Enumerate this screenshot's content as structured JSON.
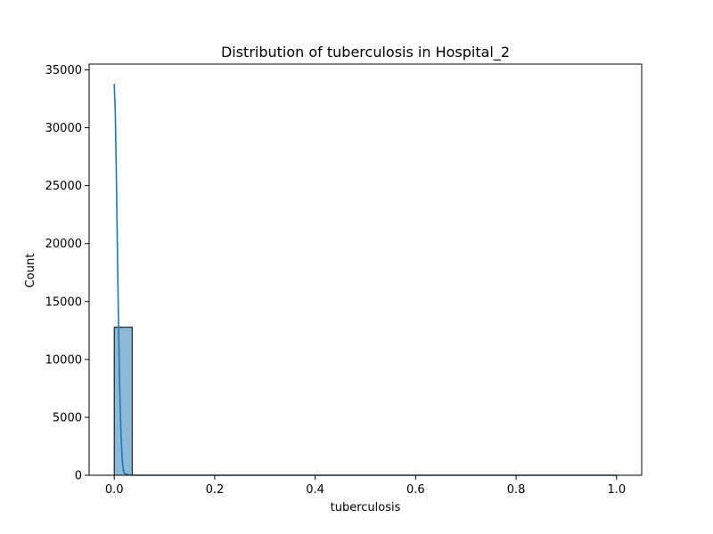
{
  "chart_data": {
    "type": "bar",
    "title": "Distribution of tuberculosis in Hospital_2",
    "xlabel": "tuberculosis",
    "ylabel": "Count",
    "xlim": [
      -0.05,
      1.05
    ],
    "ylim": [
      0,
      35500
    ],
    "x_ticks": [
      0.0,
      0.2,
      0.4,
      0.6,
      0.8,
      1.0
    ],
    "x_tick_labels": [
      "0.0",
      "0.2",
      "0.4",
      "0.6",
      "0.8",
      "1.0"
    ],
    "y_ticks": [
      0,
      5000,
      10000,
      15000,
      20000,
      25000,
      30000,
      35000
    ],
    "y_tick_labels": [
      "0",
      "5000",
      "10000",
      "15000",
      "20000",
      "25000",
      "30000",
      "35000"
    ],
    "bins": {
      "start": 0.0,
      "end": 1.0,
      "width": 0.0357,
      "counts": [
        12780,
        0,
        0,
        0,
        0,
        0,
        0,
        0,
        0,
        0,
        0,
        0,
        0,
        0,
        0,
        0,
        0,
        0,
        0,
        0,
        0,
        0,
        0,
        0,
        0,
        0,
        0,
        0
      ]
    },
    "kde": {
      "x": [
        0.0,
        0.002,
        0.004,
        0.006,
        0.008,
        0.01,
        0.012,
        0.014,
        0.016,
        0.018,
        0.02,
        0.03,
        0.05,
        0.1,
        0.2,
        0.4,
        0.6,
        0.8,
        1.0
      ],
      "y": [
        33800,
        31500,
        26500,
        20500,
        14500,
        9500,
        5500,
        3000,
        1300,
        500,
        150,
        20,
        0,
        0,
        0,
        0,
        0,
        0,
        0
      ]
    },
    "bar_fill": "#8ebad9",
    "bar_stroke": "#000000",
    "line_color": "#1f77b4",
    "grid": false,
    "legend": "none"
  }
}
